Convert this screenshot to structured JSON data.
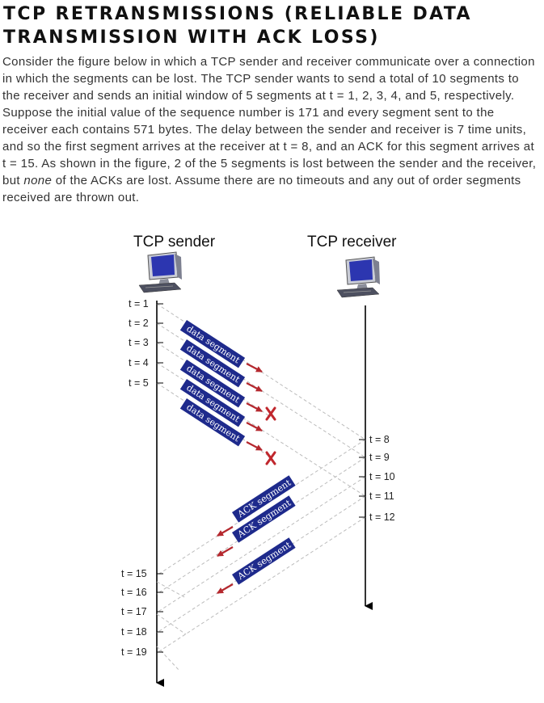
{
  "title": "TCP RETRANSMISSIONS (RELIABLE DATA TRANSMISSION WITH ACK LOSS)",
  "paragraph": {
    "before_emphasis": "Consider the figure below in which a TCP sender and receiver communicate over a connection in which the segments can be lost. The TCP sender wants to send a total of 10 segments to the receiver and sends an initial window of 5 segments at t = 1, 2, 3, 4, and 5, respectively. Suppose the initial value of the sequence number is 171 and every segment sent to the receiver each contains 571 bytes. The delay between the sender and receiver is 7 time units, and so the first segment arrives at the receiver at t = 8, and an ACK for this segment arrives at t = 15. As shown in the figure, 2 of the 5 segments is lost between the sender and the receiver, but ",
    "emphasis": "none",
    "after_emphasis": " of the ACKs are lost. Assume there are no timeouts and any out of order segments received are thrown out."
  },
  "diagram": {
    "sender_label": "TCP sender",
    "receiver_label": "TCP receiver",
    "sender_times": [
      "t = 1",
      "t = 2",
      "t = 3",
      "t = 4",
      "t = 5",
      "t = 15",
      "t = 16",
      "t = 17",
      "t = 18",
      "t = 19"
    ],
    "receiver_times": [
      "t = 8",
      "t = 9",
      "t = 10",
      "t = 11",
      "t = 12"
    ],
    "data_segment_label": "data segment",
    "ack_segment_label": "ACK segment",
    "data_segments_lost": [
      false,
      false,
      true,
      false,
      true
    ],
    "loss_mark_color": "#c0272d",
    "segment_box_color": "#1e2a8c",
    "arrow_color": "#b5282e"
  }
}
